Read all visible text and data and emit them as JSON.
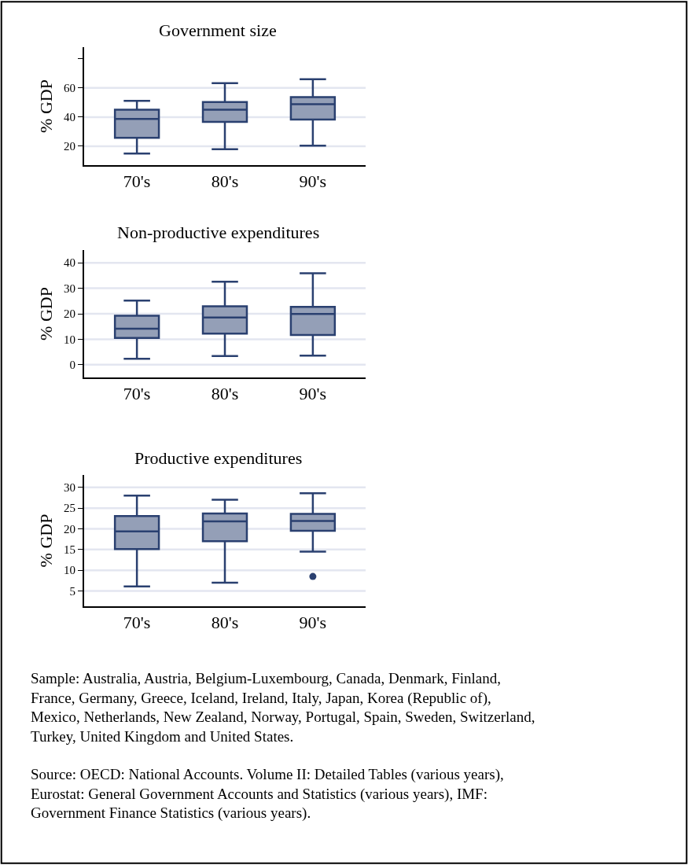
{
  "chart_data": [
    {
      "type": "box",
      "title": "Government size",
      "ylabel": "% GDP",
      "categories": [
        "70's",
        "80's",
        "90's"
      ],
      "color": "#2a4070",
      "ylim": [
        7,
        88
      ],
      "yticks": [
        20,
        40,
        60,
        {
          "value": 80,
          "label": null
        }
      ],
      "grid": "y",
      "boxes": [
        {
          "low": 15.0,
          "q1": 25.8,
          "median": 38.7,
          "q3": 45.1,
          "high": 51.2
        },
        {
          "low": 17.9,
          "q1": 36.7,
          "median": 45.1,
          "q3": 50.4,
          "high": 63.3
        },
        {
          "low": 20.3,
          "q1": 38.3,
          "median": 48.8,
          "q3": 53.7,
          "high": 66.0
        }
      ]
    },
    {
      "type": "box",
      "title": "Non-productive expenditures",
      "ylabel": "% GDP",
      "categories": [
        "70's",
        "80's",
        "90's"
      ],
      "color": "#2a4070",
      "ylim": [
        -5,
        45
      ],
      "yticks": [
        0,
        10,
        20,
        30,
        40
      ],
      "grid": "y",
      "boxes": [
        {
          "low": 2.3,
          "q1": 10.5,
          "median": 14.1,
          "q3": 19.2,
          "high": 25.2
        },
        {
          "low": 3.4,
          "q1": 12.2,
          "median": 18.5,
          "q3": 22.9,
          "high": 32.6
        },
        {
          "low": 3.6,
          "q1": 11.7,
          "median": 19.9,
          "q3": 22.7,
          "high": 35.9
        }
      ]
    },
    {
      "type": "box",
      "title": "Productive expenditures",
      "ylabel": "% GDP",
      "categories": [
        "70's",
        "80's",
        "90's"
      ],
      "color": "#2a4070",
      "ylim": [
        1.3,
        33
      ],
      "yticks": [
        5,
        10,
        15,
        20,
        25,
        30
      ],
      "grid": "y",
      "boxes": [
        {
          "low": 6.1,
          "q1": 15.1,
          "median": 19.4,
          "q3": 23.1,
          "high": 28.0
        },
        {
          "low": 7.0,
          "q1": 17.0,
          "median": 21.8,
          "q3": 23.7,
          "high": 27.0
        },
        {
          "low": 14.5,
          "q1": 19.5,
          "median": 21.9,
          "q3": 23.6,
          "high": 28.6,
          "outliers": [
            8.5
          ]
        }
      ],
      "annotations": [
        "Sample: Australia, Austria, Belgium-Luxembourg, Canada, Denmark, Finland, France, Germany, Greece, Iceland, Ireland, Italy, Japan, Korea (Republic of), Mexico, Netherlands, New Zealand, Norway, Portugal, Spain, Sweden, Switzerland, Turkey, United Kingdom and United States.",
        "Source: OECD: National Accounts. Volume II: Detailed Tables (various years), Eurostat: General Government Accounts and Statistics (various years), IMF: Government Finance Statistics (various years)."
      ]
    }
  ]
}
